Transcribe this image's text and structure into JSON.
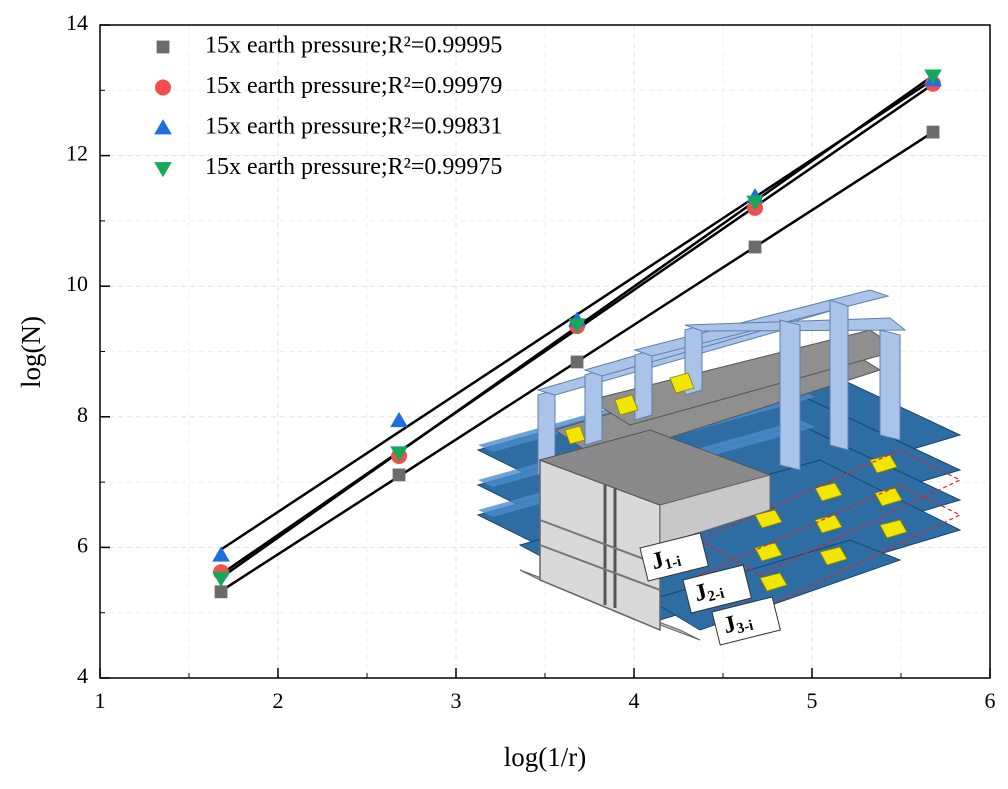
{
  "chart_data": {
    "type": "scatter",
    "x_label": "log(1/r)",
    "y_label": "log(N)",
    "xlim": [
      1,
      6
    ],
    "ylim": [
      4,
      14
    ],
    "xticks": [
      1,
      2,
      3,
      4,
      5,
      6
    ],
    "yticks": [
      4,
      6,
      8,
      10,
      12,
      14
    ],
    "grid": true,
    "legend": "top-left",
    "fit_lines": true,
    "x": [
      1.68,
      2.68,
      3.68,
      4.68,
      5.68
    ],
    "series": [
      {
        "name": "15x earth pressure;R²=0.99995",
        "color": "#6b6b6b",
        "marker": "square",
        "values": [
          5.32,
          7.11,
          8.84,
          10.6,
          12.36
        ]
      },
      {
        "name": "15x earth pressure;R²=0.99979",
        "color": "#f44d4d",
        "marker": "circle",
        "values": [
          5.62,
          7.4,
          9.39,
          11.2,
          13.1
        ]
      },
      {
        "name": "15x earth pressure;R²=0.99831",
        "color": "#1d6fe0",
        "marker": "triangle",
        "values": [
          5.88,
          7.94,
          9.48,
          11.37,
          13.16
        ]
      },
      {
        "name": "15x earth pressure;R²=0.99975",
        "color": "#15a85a",
        "marker": "triangle-down",
        "values": [
          5.53,
          7.45,
          9.41,
          11.29,
          13.22
        ]
      }
    ],
    "inset_labels": [
      {
        "base": "J",
        "sub": "1-i"
      },
      {
        "base": "J",
        "sub": "2-i"
      },
      {
        "base": "J",
        "sub": "3-i"
      }
    ]
  }
}
